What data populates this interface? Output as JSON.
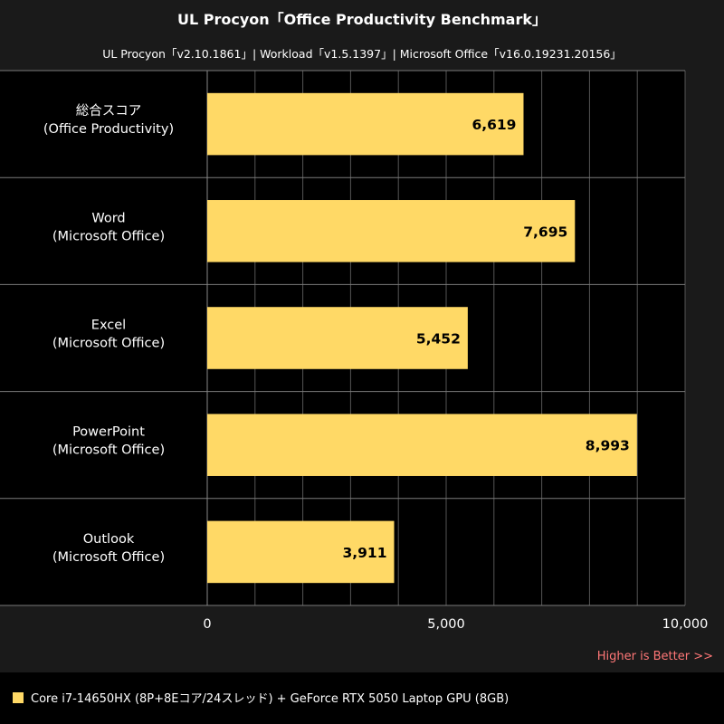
{
  "chart_data": {
    "type": "bar",
    "orientation": "horizontal",
    "title": "UL Procyon「Office Productivity Benchmark」",
    "subtitle": "UL Procyon「v2.10.1861」| Workload「v1.5.1397」| Microsoft Office「v16.0.19231.20156」",
    "categories": [
      [
        "総合スコア",
        "(Office Productivity)"
      ],
      [
        "Word",
        "(Microsoft Office)"
      ],
      [
        "Excel",
        "(Microsoft Office)"
      ],
      [
        "PowerPoint",
        "(Microsoft Office)"
      ],
      [
        "Outlook",
        "(Microsoft Office)"
      ]
    ],
    "series": [
      {
        "name": "Core i7-14650HX (8P+8Eコア/24スレッド) + GeForce RTX 5050 Laptop GPU (8GB)",
        "color": "#FFD966",
        "values": [
          6619,
          7695,
          5452,
          8993,
          3911
        ],
        "labels": [
          "6,619",
          "7,695",
          "5,452",
          "8,993",
          "3,911"
        ]
      }
    ],
    "xlim": [
      0,
      10000
    ],
    "xticks": [
      0,
      5000,
      10000
    ],
    "xtick_labels": [
      "0",
      "5,000",
      "10,000"
    ],
    "grid": true,
    "legend_position": "bottom-left",
    "annotation": "Higher is Better >>",
    "annotation_color": "#FF7777",
    "plot_background": "#000000",
    "panel_background": "#1A1A1A",
    "gridline_color": "#555555"
  }
}
